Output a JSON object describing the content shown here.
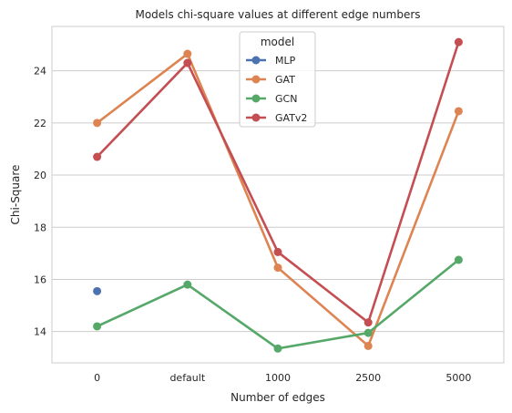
{
  "chart_data": {
    "type": "line",
    "title": "Models chi-square values at different edge numbers",
    "xlabel": "Number of edges",
    "ylabel": "Chi-Square",
    "categories": [
      "0",
      "default",
      "1000",
      "2500",
      "5000"
    ],
    "ylim": [
      12.8,
      25.7
    ],
    "yticks": [
      14,
      16,
      18,
      20,
      22,
      24
    ],
    "grid": true,
    "legend": {
      "title": "model",
      "placement": "top-center"
    },
    "series": [
      {
        "name": "MLP",
        "color": "#4c72b0",
        "values": [
          15.55,
          null,
          null,
          null,
          null
        ]
      },
      {
        "name": "GAT",
        "color": "#dd8452",
        "values": [
          22.0,
          24.65,
          16.45,
          13.45,
          22.45
        ]
      },
      {
        "name": "GCN",
        "color": "#55a868",
        "values": [
          14.2,
          15.8,
          13.35,
          13.95,
          16.75
        ]
      },
      {
        "name": "GATv2",
        "color": "#c44e52",
        "values": [
          20.7,
          24.3,
          17.05,
          14.35,
          25.1
        ]
      }
    ]
  }
}
